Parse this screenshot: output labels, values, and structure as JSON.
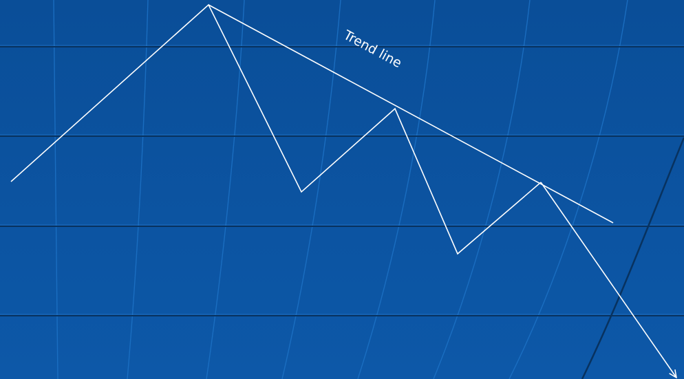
{
  "diagram": {
    "trend_label": "Trend line",
    "colors": {
      "background_top": "#0a4e98",
      "background_bottom": "#0d58a8",
      "grid_dark": "#08325f",
      "grid_light": "#1d72c6",
      "line": "#ffffff"
    }
  }
}
